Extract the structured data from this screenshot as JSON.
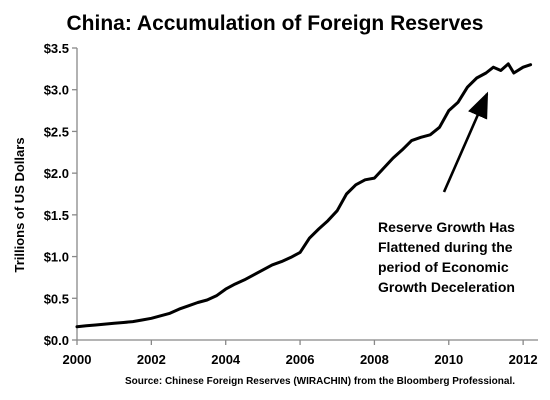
{
  "chart_data": {
    "type": "line",
    "title": "China: Accumulation of Foreign Reserves",
    "ylabel": "Trillions of US Dollars",
    "xlabel": "",
    "xlim": [
      2000,
      2012.4
    ],
    "ylim": [
      0,
      3.5
    ],
    "x_ticks": [
      2000,
      2002,
      2004,
      2006,
      2008,
      2010,
      2012
    ],
    "x_tick_labels": [
      "2000",
      "2002",
      "2004",
      "2006",
      "2008",
      "2010",
      "2012"
    ],
    "y_ticks": [
      0,
      0.5,
      1.0,
      1.5,
      2.0,
      2.5,
      3.0,
      3.5
    ],
    "y_tick_labels": [
      "$0.0",
      "$0.5",
      "$1.0",
      "$1.5",
      "$2.0",
      "$2.5",
      "$3.0",
      "$3.5"
    ],
    "grid": false,
    "series": [
      {
        "x": [
          2000.0,
          2000.25,
          2000.5,
          2000.75,
          2001.0,
          2001.25,
          2001.5,
          2001.75,
          2002.0,
          2002.25,
          2002.5,
          2002.75,
          2003.0,
          2003.25,
          2003.5,
          2003.75,
          2004.0,
          2004.25,
          2004.5,
          2004.75,
          2005.0,
          2005.25,
          2005.5,
          2005.75,
          2006.0,
          2006.25,
          2006.5,
          2006.75,
          2007.0,
          2007.25,
          2007.5,
          2007.75,
          2008.0,
          2008.25,
          2008.5,
          2008.75,
          2009.0,
          2009.25,
          2009.5,
          2009.75,
          2010.0,
          2010.25,
          2010.5,
          2010.75,
          2011.0,
          2011.2,
          2011.4,
          2011.6,
          2011.75,
          2012.0,
          2012.2
        ],
        "values": [
          0.16,
          0.17,
          0.18,
          0.19,
          0.2,
          0.21,
          0.22,
          0.24,
          0.26,
          0.29,
          0.32,
          0.37,
          0.41,
          0.45,
          0.48,
          0.53,
          0.61,
          0.67,
          0.72,
          0.78,
          0.84,
          0.9,
          0.94,
          0.99,
          1.05,
          1.22,
          1.33,
          1.43,
          1.55,
          1.75,
          1.86,
          1.92,
          1.94,
          2.06,
          2.18,
          2.28,
          2.39,
          2.43,
          2.46,
          2.55,
          2.75,
          2.85,
          3.03,
          3.14,
          3.2,
          3.27,
          3.23,
          3.31,
          3.2,
          3.27,
          3.3
        ]
      }
    ],
    "annotation": {
      "lines": [
        "Reserve Growth Has",
        "Flattened during the",
        "period of Economic",
        "Growth Deceleration"
      ]
    },
    "source": "Source:  Chinese Foreign Reserves (WIRACHIN) from the Bloomberg Professional."
  }
}
